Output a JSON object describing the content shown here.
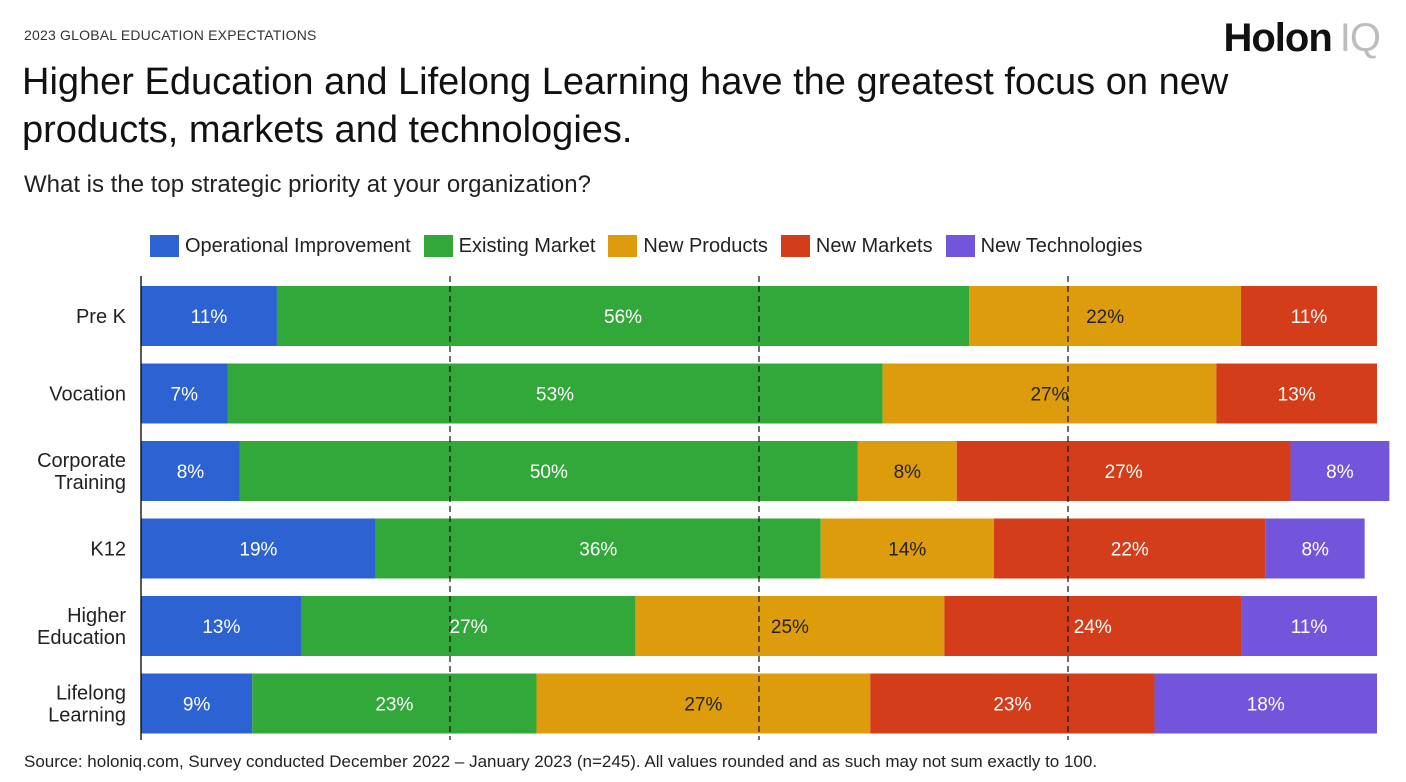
{
  "header": {
    "kicker": "2023 GLOBAL EDUCATION EXPECTATIONS",
    "brand_main": "Holon",
    "brand_suffix": "IQ",
    "title": "Higher Education and Lifelong Learning have the greatest focus on new products, markets and technologies.",
    "subtitle": "What is the top strategic priority at your organization?"
  },
  "footer": {
    "source": "Source: holoniq.com, Survey conducted December 2022 – January 2023 (n=245). All values rounded and as such may not sum exactly to 100."
  },
  "chart_data": {
    "type": "bar",
    "orientation": "horizontal",
    "stacked": true,
    "categories": [
      [
        "Pre K"
      ],
      [
        "Vocation"
      ],
      [
        "Corporate",
        "Training"
      ],
      [
        "K12"
      ],
      [
        "Higher",
        "Education"
      ],
      [
        "Lifelong",
        "Learning"
      ]
    ],
    "series": [
      {
        "name": "Operational Improvement",
        "color": "#2d62d3",
        "label_color": "#ffffff",
        "values": [
          11,
          7,
          8,
          19,
          13,
          9
        ]
      },
      {
        "name": "Existing Market",
        "color": "#33a83a",
        "label_color": "#ffffff",
        "values": [
          56,
          53,
          50,
          36,
          27,
          23
        ]
      },
      {
        "name": "New Products",
        "color": "#dc9c0c",
        "label_color": "#222222",
        "values": [
          22,
          27,
          8,
          14,
          25,
          27
        ]
      },
      {
        "name": "New Markets",
        "color": "#d43d1a",
        "label_color": "#ffffff",
        "values": [
          11,
          13,
          27,
          22,
          24,
          23
        ]
      },
      {
        "name": "New Technologies",
        "color": "#7355dc",
        "label_color": "#ffffff",
        "values": [
          0,
          0,
          8,
          8,
          11,
          18
        ]
      }
    ],
    "value_suffix": "%",
    "xlim": [
      0,
      100
    ],
    "gridlines": "dashed",
    "legend_position": "top"
  }
}
